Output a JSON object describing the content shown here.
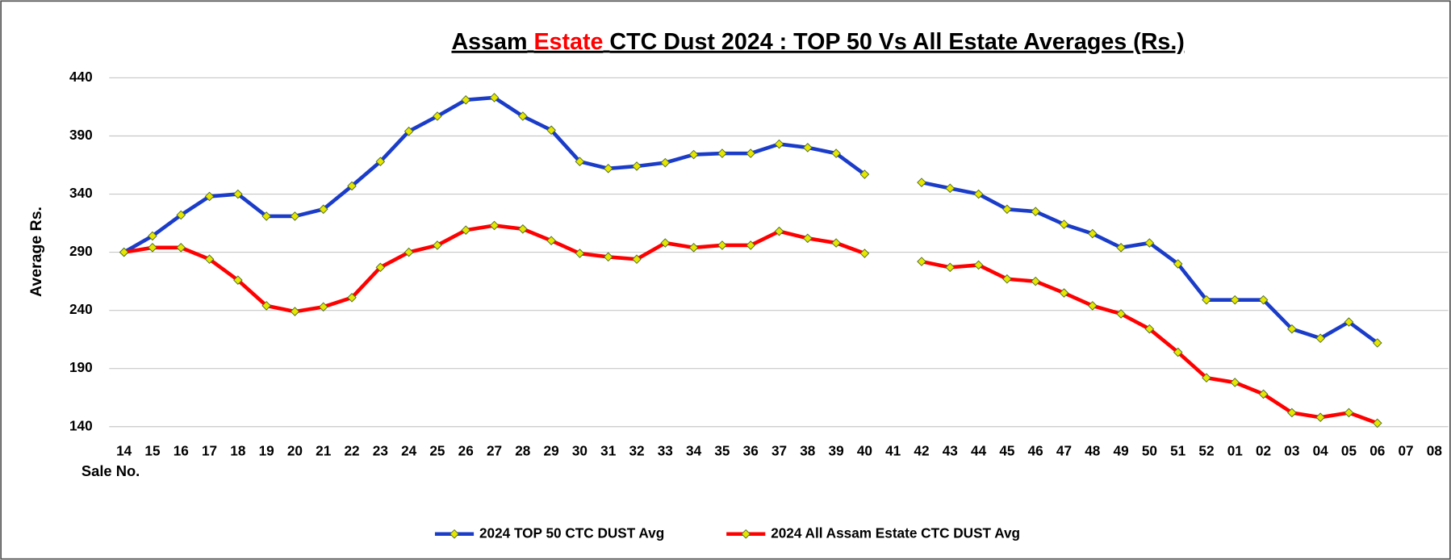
{
  "chart_data": {
    "type": "line",
    "title": {
      "prefix": "Assam",
      "highlight": "Estate",
      "rest": "CTC Dust 2024 : TOP 50 Vs All Estate Averages (Rs.)"
    },
    "title_highlight_color": "#ff0000",
    "y_label": "Average Rs.",
    "x_label": "Sale No.",
    "categories": [
      "14",
      "15",
      "16",
      "17",
      "18",
      "19",
      "20",
      "21",
      "22",
      "23",
      "24",
      "25",
      "26",
      "27",
      "28",
      "29",
      "30",
      "31",
      "32",
      "33",
      "34",
      "35",
      "36",
      "37",
      "38",
      "39",
      "40",
      "41",
      "42",
      "43",
      "44",
      "45",
      "46",
      "47",
      "48",
      "49",
      "50",
      "51",
      "52",
      "01",
      "02",
      "03",
      "04",
      "05",
      "06",
      "07",
      "08"
    ],
    "series": [
      {
        "name": "2024 TOP 50 CTC DUST Avg",
        "color": "#1a3cc8",
        "values": [
          290,
          304,
          322,
          338,
          340,
          321,
          321,
          327,
          347,
          368,
          394,
          407,
          421,
          423,
          407,
          395,
          368,
          362,
          364,
          367,
          374,
          375,
          375,
          383,
          380,
          375,
          357,
          null,
          350,
          345,
          340,
          327,
          325,
          314,
          306,
          294,
          298,
          280,
          249,
          249,
          249,
          224,
          216,
          230,
          212,
          null,
          null
        ]
      },
      {
        "name": "2024 All Assam Estate CTC DUST Avg",
        "color": "#ff0000",
        "values": [
          290,
          294,
          294,
          284,
          266,
          244,
          239,
          243,
          251,
          277,
          290,
          296,
          309,
          313,
          310,
          300,
          289,
          286,
          284,
          298,
          294,
          296,
          296,
          308,
          302,
          298,
          289,
          null,
          282,
          277,
          279,
          267,
          265,
          255,
          244,
          237,
          224,
          204,
          182,
          178,
          168,
          152,
          148,
          152,
          143,
          null,
          null
        ]
      }
    ],
    "marker_color": "#e6e600",
    "ylim": [
      140,
      440
    ],
    "yticks": [
      140,
      190,
      240,
      290,
      340,
      390,
      440
    ],
    "grid": true,
    "legend": "bottom"
  }
}
